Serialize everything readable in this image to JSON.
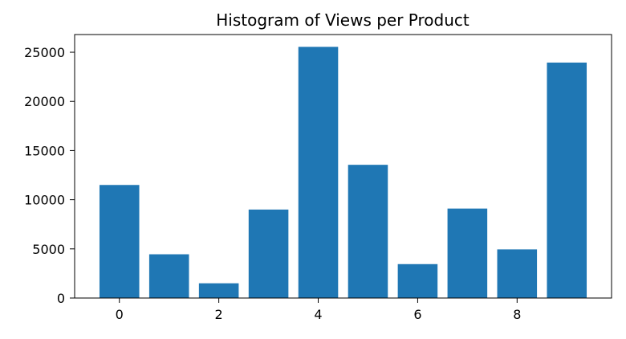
{
  "chart_data": {
    "type": "bar",
    "title": "Histogram of Views per Product",
    "xlabel": "",
    "ylabel": "",
    "x": [
      0,
      1,
      2,
      3,
      4,
      5,
      6,
      7,
      8,
      9
    ],
    "values": [
      11500,
      4450,
      1500,
      9000,
      25550,
      13550,
      3450,
      9100,
      4950,
      23950
    ],
    "xlim": [
      -0.9,
      9.9
    ],
    "ylim": [
      0,
      26800
    ],
    "x_ticks": [
      0,
      2,
      4,
      6,
      8
    ],
    "x_tick_labels": [
      "0",
      "2",
      "4",
      "6",
      "8"
    ],
    "y_ticks": [
      0,
      5000,
      10000,
      15000,
      20000,
      25000
    ],
    "y_tick_labels": [
      "0",
      "5000",
      "10000",
      "15000",
      "20000",
      "25000"
    ],
    "bar_color": "#1f77b4",
    "grid": false,
    "legend": "none"
  }
}
